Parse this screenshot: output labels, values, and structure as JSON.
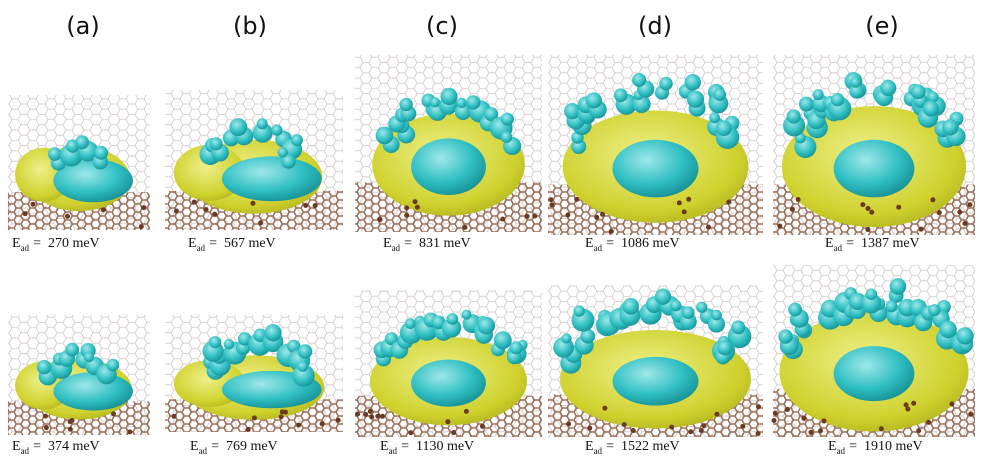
{
  "panels": [
    {
      "label": "(a)",
      "rows": [
        {
          "symbol": "E",
          "subscript": "ad",
          "text": "=  270 meV"
        },
        {
          "symbol": "E",
          "subscript": "ad",
          "text": "=  374 meV"
        }
      ]
    },
    {
      "label": "(b)",
      "rows": [
        {
          "symbol": "E",
          "subscript": "ad",
          "text": "=  567 meV"
        },
        {
          "symbol": "E",
          "subscript": "ad",
          "text": "=  769 meV"
        }
      ]
    },
    {
      "label": "(c)",
      "rows": [
        {
          "symbol": "E",
          "subscript": "ad",
          "text": "=  831 meV"
        },
        {
          "symbol": "E",
          "subscript": "ad",
          "text": "=  1130 meV"
        }
      ]
    },
    {
      "label": "(d)",
      "rows": [
        {
          "symbol": "E",
          "subscript": "ad",
          "text": "=  1086 meV"
        },
        {
          "symbol": "E",
          "subscript": "ad",
          "text": "=  1522 meV"
        }
      ]
    },
    {
      "label": "(e)",
      "rows": [
        {
          "symbol": "E",
          "subscript": "ad",
          "text": "=  1387 meV"
        },
        {
          "symbol": "E",
          "subscript": "ad",
          "text": "=  1910 meV"
        }
      ]
    }
  ]
}
